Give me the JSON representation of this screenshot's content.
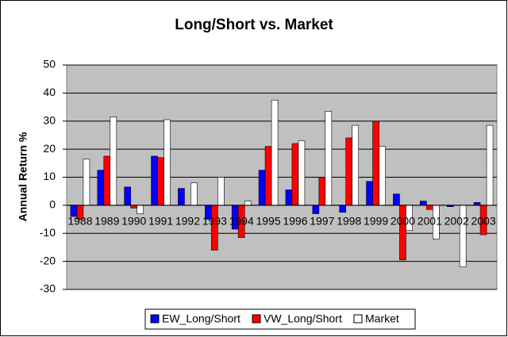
{
  "chart_data": {
    "type": "bar",
    "title": "Long/Short vs. Market",
    "y_label": "Annual Return %",
    "categories": [
      "1988",
      "1989",
      "1990",
      "1991",
      "1992",
      "1993",
      "1994",
      "1995",
      "1996",
      "1997",
      "1998",
      "1999",
      "2000",
      "2001",
      "2002",
      "2003"
    ],
    "series": [
      {
        "name": "EW_Long/Short",
        "color": "#0000ff",
        "values": [
          -4,
          12.5,
          6.5,
          17.5,
          6,
          -5,
          -8.5,
          12.5,
          5.5,
          -3,
          -2.5,
          8.5,
          4,
          1.5,
          -0.5,
          1
        ]
      },
      {
        "name": "VW_Long/Short",
        "color": "#ff0000",
        "values": [
          -5,
          17.5,
          -1,
          17,
          0,
          -16,
          -11.5,
          21,
          22,
          10,
          24,
          30,
          -19.5,
          -1.5,
          0,
          -10.5
        ]
      },
      {
        "name": "Market",
        "color": "#ffffff",
        "values": [
          16.5,
          31.5,
          -3,
          30.5,
          8,
          10,
          1.5,
          37.5,
          23,
          33.5,
          28.5,
          21,
          -9,
          -12,
          -22,
          28.5
        ]
      }
    ],
    "ylim": [
      -30,
      50
    ],
    "yticks": [
      -30,
      -20,
      -10,
      0,
      10,
      20,
      30,
      40,
      50
    ],
    "grid": true,
    "legend": "bottom"
  }
}
